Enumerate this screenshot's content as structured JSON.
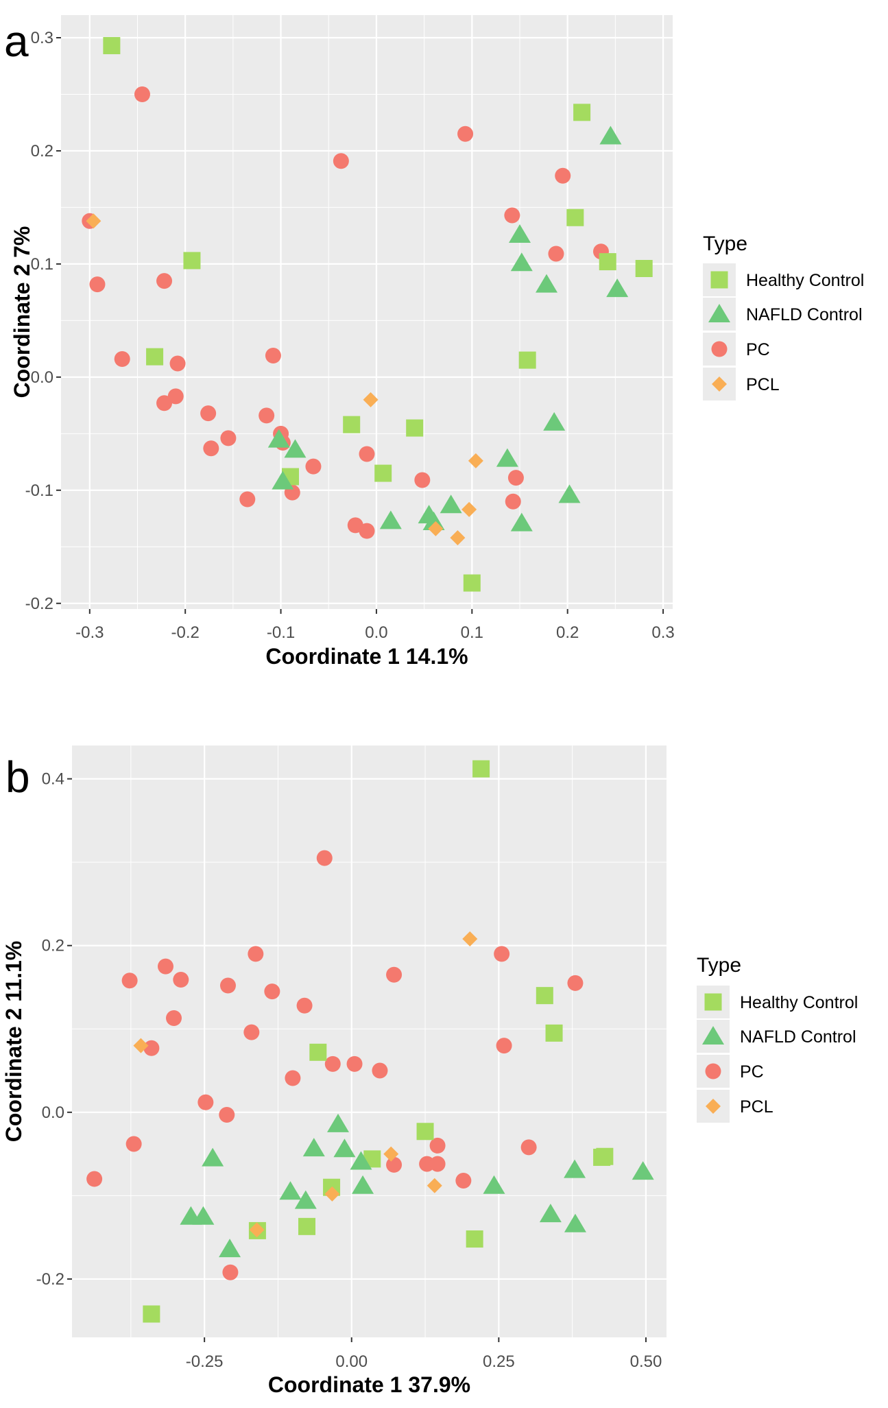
{
  "colors": {
    "panel_bg": "#EBEBEB",
    "grid": "#FFFFFF",
    "healthy_control": "#A4DB5F",
    "nafld_control": "#6CC97A",
    "pc": "#F4796E",
    "pcl": "#F9AE55"
  },
  "chart_data": [
    {
      "id": "a",
      "type": "scatter",
      "panel_label": "a",
      "xlabel": "Coordinate 1 14.1%",
      "ylabel": "Coordinate 2 7%",
      "xlim": [
        -0.33,
        0.31
      ],
      "ylim": [
        -0.205,
        0.32
      ],
      "xticks": [
        -0.3,
        -0.2,
        -0.1,
        0.0,
        0.1,
        0.2,
        0.3
      ],
      "xtick_labels": [
        "-0.3",
        "-0.2",
        "-0.1",
        "0.0",
        "0.1",
        "0.2",
        "0.3"
      ],
      "yticks": [
        -0.2,
        -0.1,
        0.0,
        0.1,
        0.2,
        0.3
      ],
      "ytick_labels": [
        "-0.2",
        "-0.1",
        "0.0",
        "0.1",
        "0.2",
        "0.3"
      ],
      "legend": {
        "title": "Type",
        "position": "right",
        "entries": [
          {
            "label": "Healthy Control",
            "shape": "square",
            "color": "#A4DB5F"
          },
          {
            "label": "NAFLD Control",
            "shape": "triangle",
            "color": "#6CC97A"
          },
          {
            "label": "PC",
            "shape": "circle",
            "color": "#F4796E"
          },
          {
            "label": "PCL",
            "shape": "diamond",
            "color": "#F9AE55"
          }
        ]
      },
      "series": [
        {
          "name": "PC",
          "shape": "circle",
          "color": "#F4796E",
          "points": [
            [
              -0.3,
              0.138
            ],
            [
              -0.245,
              0.25
            ],
            [
              -0.292,
              0.082
            ],
            [
              -0.222,
              0.085
            ],
            [
              -0.266,
              0.016
            ],
            [
              -0.208,
              0.012
            ],
            [
              -0.21,
              -0.017
            ],
            [
              -0.222,
              -0.023
            ],
            [
              -0.176,
              -0.032
            ],
            [
              -0.173,
              -0.063
            ],
            [
              -0.155,
              -0.054
            ],
            [
              -0.135,
              -0.108
            ],
            [
              -0.115,
              -0.034
            ],
            [
              -0.108,
              0.019
            ],
            [
              -0.1,
              -0.05
            ],
            [
              -0.098,
              -0.058
            ],
            [
              -0.088,
              -0.102
            ],
            [
              -0.066,
              -0.079
            ],
            [
              -0.037,
              0.191
            ],
            [
              -0.022,
              -0.131
            ],
            [
              -0.01,
              -0.136
            ],
            [
              -0.01,
              -0.068
            ],
            [
              0.048,
              -0.091
            ],
            [
              0.093,
              0.215
            ],
            [
              0.142,
              0.143
            ],
            [
              0.143,
              -0.11
            ],
            [
              0.146,
              -0.089
            ],
            [
              0.188,
              0.109
            ],
            [
              0.195,
              0.178
            ],
            [
              0.235,
              0.111
            ]
          ]
        },
        {
          "name": "Healthy Control",
          "shape": "square",
          "color": "#A4DB5F",
          "points": [
            [
              -0.277,
              0.293
            ],
            [
              -0.193,
              0.103
            ],
            [
              -0.232,
              0.018
            ],
            [
              -0.09,
              -0.088
            ],
            [
              -0.026,
              -0.042
            ],
            [
              0.007,
              -0.085
            ],
            [
              0.04,
              -0.045
            ],
            [
              0.1,
              -0.182
            ],
            [
              0.158,
              0.015
            ],
            [
              0.208,
              0.141
            ],
            [
              0.215,
              0.234
            ],
            [
              0.242,
              0.102
            ],
            [
              0.28,
              0.096
            ]
          ]
        },
        {
          "name": "NAFLD Control",
          "shape": "triangle",
          "color": "#6CC97A",
          "points": [
            [
              -0.102,
              -0.055
            ],
            [
              -0.098,
              -0.092
            ],
            [
              -0.085,
              -0.064
            ],
            [
              0.015,
              -0.127
            ],
            [
              0.055,
              -0.122
            ],
            [
              0.06,
              -0.128
            ],
            [
              0.078,
              -0.113
            ],
            [
              0.137,
              -0.072
            ],
            [
              0.15,
              0.126
            ],
            [
              0.152,
              0.101
            ],
            [
              0.152,
              -0.129
            ],
            [
              0.178,
              0.082
            ],
            [
              0.186,
              -0.04
            ],
            [
              0.202,
              -0.104
            ],
            [
              0.245,
              0.213
            ],
            [
              0.252,
              0.078
            ]
          ]
        },
        {
          "name": "PCL",
          "shape": "diamond",
          "color": "#F9AE55",
          "points": [
            [
              -0.296,
              0.138
            ],
            [
              -0.006,
              -0.02
            ],
            [
              0.062,
              -0.134
            ],
            [
              0.085,
              -0.142
            ],
            [
              0.097,
              -0.117
            ],
            [
              0.104,
              -0.074
            ]
          ]
        }
      ]
    },
    {
      "id": "b",
      "type": "scatter",
      "panel_label": "b",
      "xlabel": "Coordinate 1 37.9%",
      "ylabel": "Coordinate 2 11.1%",
      "xlim": [
        -0.475,
        0.535
      ],
      "ylim": [
        -0.27,
        0.44
      ],
      "xticks": [
        -0.25,
        0.0,
        0.25,
        0.5
      ],
      "xtick_labels": [
        "-0.25",
        "0.00",
        "0.25",
        "0.50"
      ],
      "yticks": [
        -0.2,
        0.0,
        0.2,
        0.4
      ],
      "ytick_labels": [
        "-0.2",
        "0.0",
        "0.2",
        "0.4"
      ],
      "legend": {
        "title": "Type",
        "position": "right",
        "entries": [
          {
            "label": "Healthy Control",
            "shape": "square",
            "color": "#A4DB5F"
          },
          {
            "label": "NAFLD Control",
            "shape": "triangle",
            "color": "#6CC97A"
          },
          {
            "label": "PC",
            "shape": "circle",
            "color": "#F4796E"
          },
          {
            "label": "PCL",
            "shape": "diamond",
            "color": "#F9AE55"
          }
        ]
      },
      "series": [
        {
          "name": "PC",
          "shape": "circle",
          "color": "#F4796E",
          "points": [
            [
              -0.437,
              -0.08
            ],
            [
              -0.377,
              0.158
            ],
            [
              -0.37,
              -0.038
            ],
            [
              -0.34,
              0.077
            ],
            [
              -0.316,
              0.175
            ],
            [
              -0.302,
              0.113
            ],
            [
              -0.29,
              0.159
            ],
            [
              -0.248,
              0.012
            ],
            [
              -0.212,
              -0.003
            ],
            [
              -0.21,
              0.152
            ],
            [
              -0.206,
              -0.192
            ],
            [
              -0.17,
              0.096
            ],
            [
              -0.163,
              0.19
            ],
            [
              -0.135,
              0.145
            ],
            [
              -0.1,
              0.041
            ],
            [
              -0.08,
              0.128
            ],
            [
              -0.046,
              0.305
            ],
            [
              -0.032,
              0.058
            ],
            [
              0.005,
              0.058
            ],
            [
              0.048,
              0.05
            ],
            [
              0.072,
              0.165
            ],
            [
              0.072,
              -0.063
            ],
            [
              0.128,
              -0.062
            ],
            [
              0.146,
              -0.04
            ],
            [
              0.146,
              -0.062
            ],
            [
              0.19,
              -0.082
            ],
            [
              0.255,
              0.19
            ],
            [
              0.259,
              0.08
            ],
            [
              0.301,
              -0.042
            ],
            [
              0.38,
              0.155
            ]
          ]
        },
        {
          "name": "Healthy Control",
          "shape": "square",
          "color": "#A4DB5F",
          "points": [
            [
              -0.34,
              -0.242
            ],
            [
              -0.16,
              -0.142
            ],
            [
              -0.076,
              -0.137
            ],
            [
              -0.057,
              0.072
            ],
            [
              -0.034,
              -0.09
            ],
            [
              0.035,
              -0.056
            ],
            [
              0.125,
              -0.023
            ],
            [
              0.209,
              -0.152
            ],
            [
              0.22,
              0.412
            ],
            [
              0.328,
              0.14
            ],
            [
              0.344,
              0.095
            ],
            [
              0.425,
              -0.054
            ],
            [
              0.43,
              -0.053
            ]
          ]
        },
        {
          "name": "NAFLD Control",
          "shape": "triangle",
          "color": "#6CC97A",
          "points": [
            [
              -0.273,
              -0.125
            ],
            [
              -0.252,
              -0.125
            ],
            [
              -0.236,
              -0.055
            ],
            [
              -0.207,
              -0.164
            ],
            [
              -0.104,
              -0.095
            ],
            [
              -0.078,
              -0.106
            ],
            [
              -0.064,
              -0.043
            ],
            [
              -0.023,
              -0.014
            ],
            [
              -0.012,
              -0.044
            ],
            [
              0.016,
              -0.059
            ],
            [
              0.019,
              -0.088
            ],
            [
              0.242,
              -0.088
            ],
            [
              0.338,
              -0.122
            ],
            [
              0.379,
              -0.069
            ],
            [
              0.38,
              -0.134
            ],
            [
              0.495,
              -0.071
            ]
          ]
        },
        {
          "name": "PCL",
          "shape": "diamond",
          "color": "#F9AE55",
          "points": [
            [
              -0.358,
              0.08
            ],
            [
              -0.161,
              -0.141
            ],
            [
              -0.033,
              -0.098
            ],
            [
              0.067,
              -0.05
            ],
            [
              0.141,
              -0.088
            ],
            [
              0.201,
              0.208
            ]
          ]
        }
      ]
    }
  ]
}
